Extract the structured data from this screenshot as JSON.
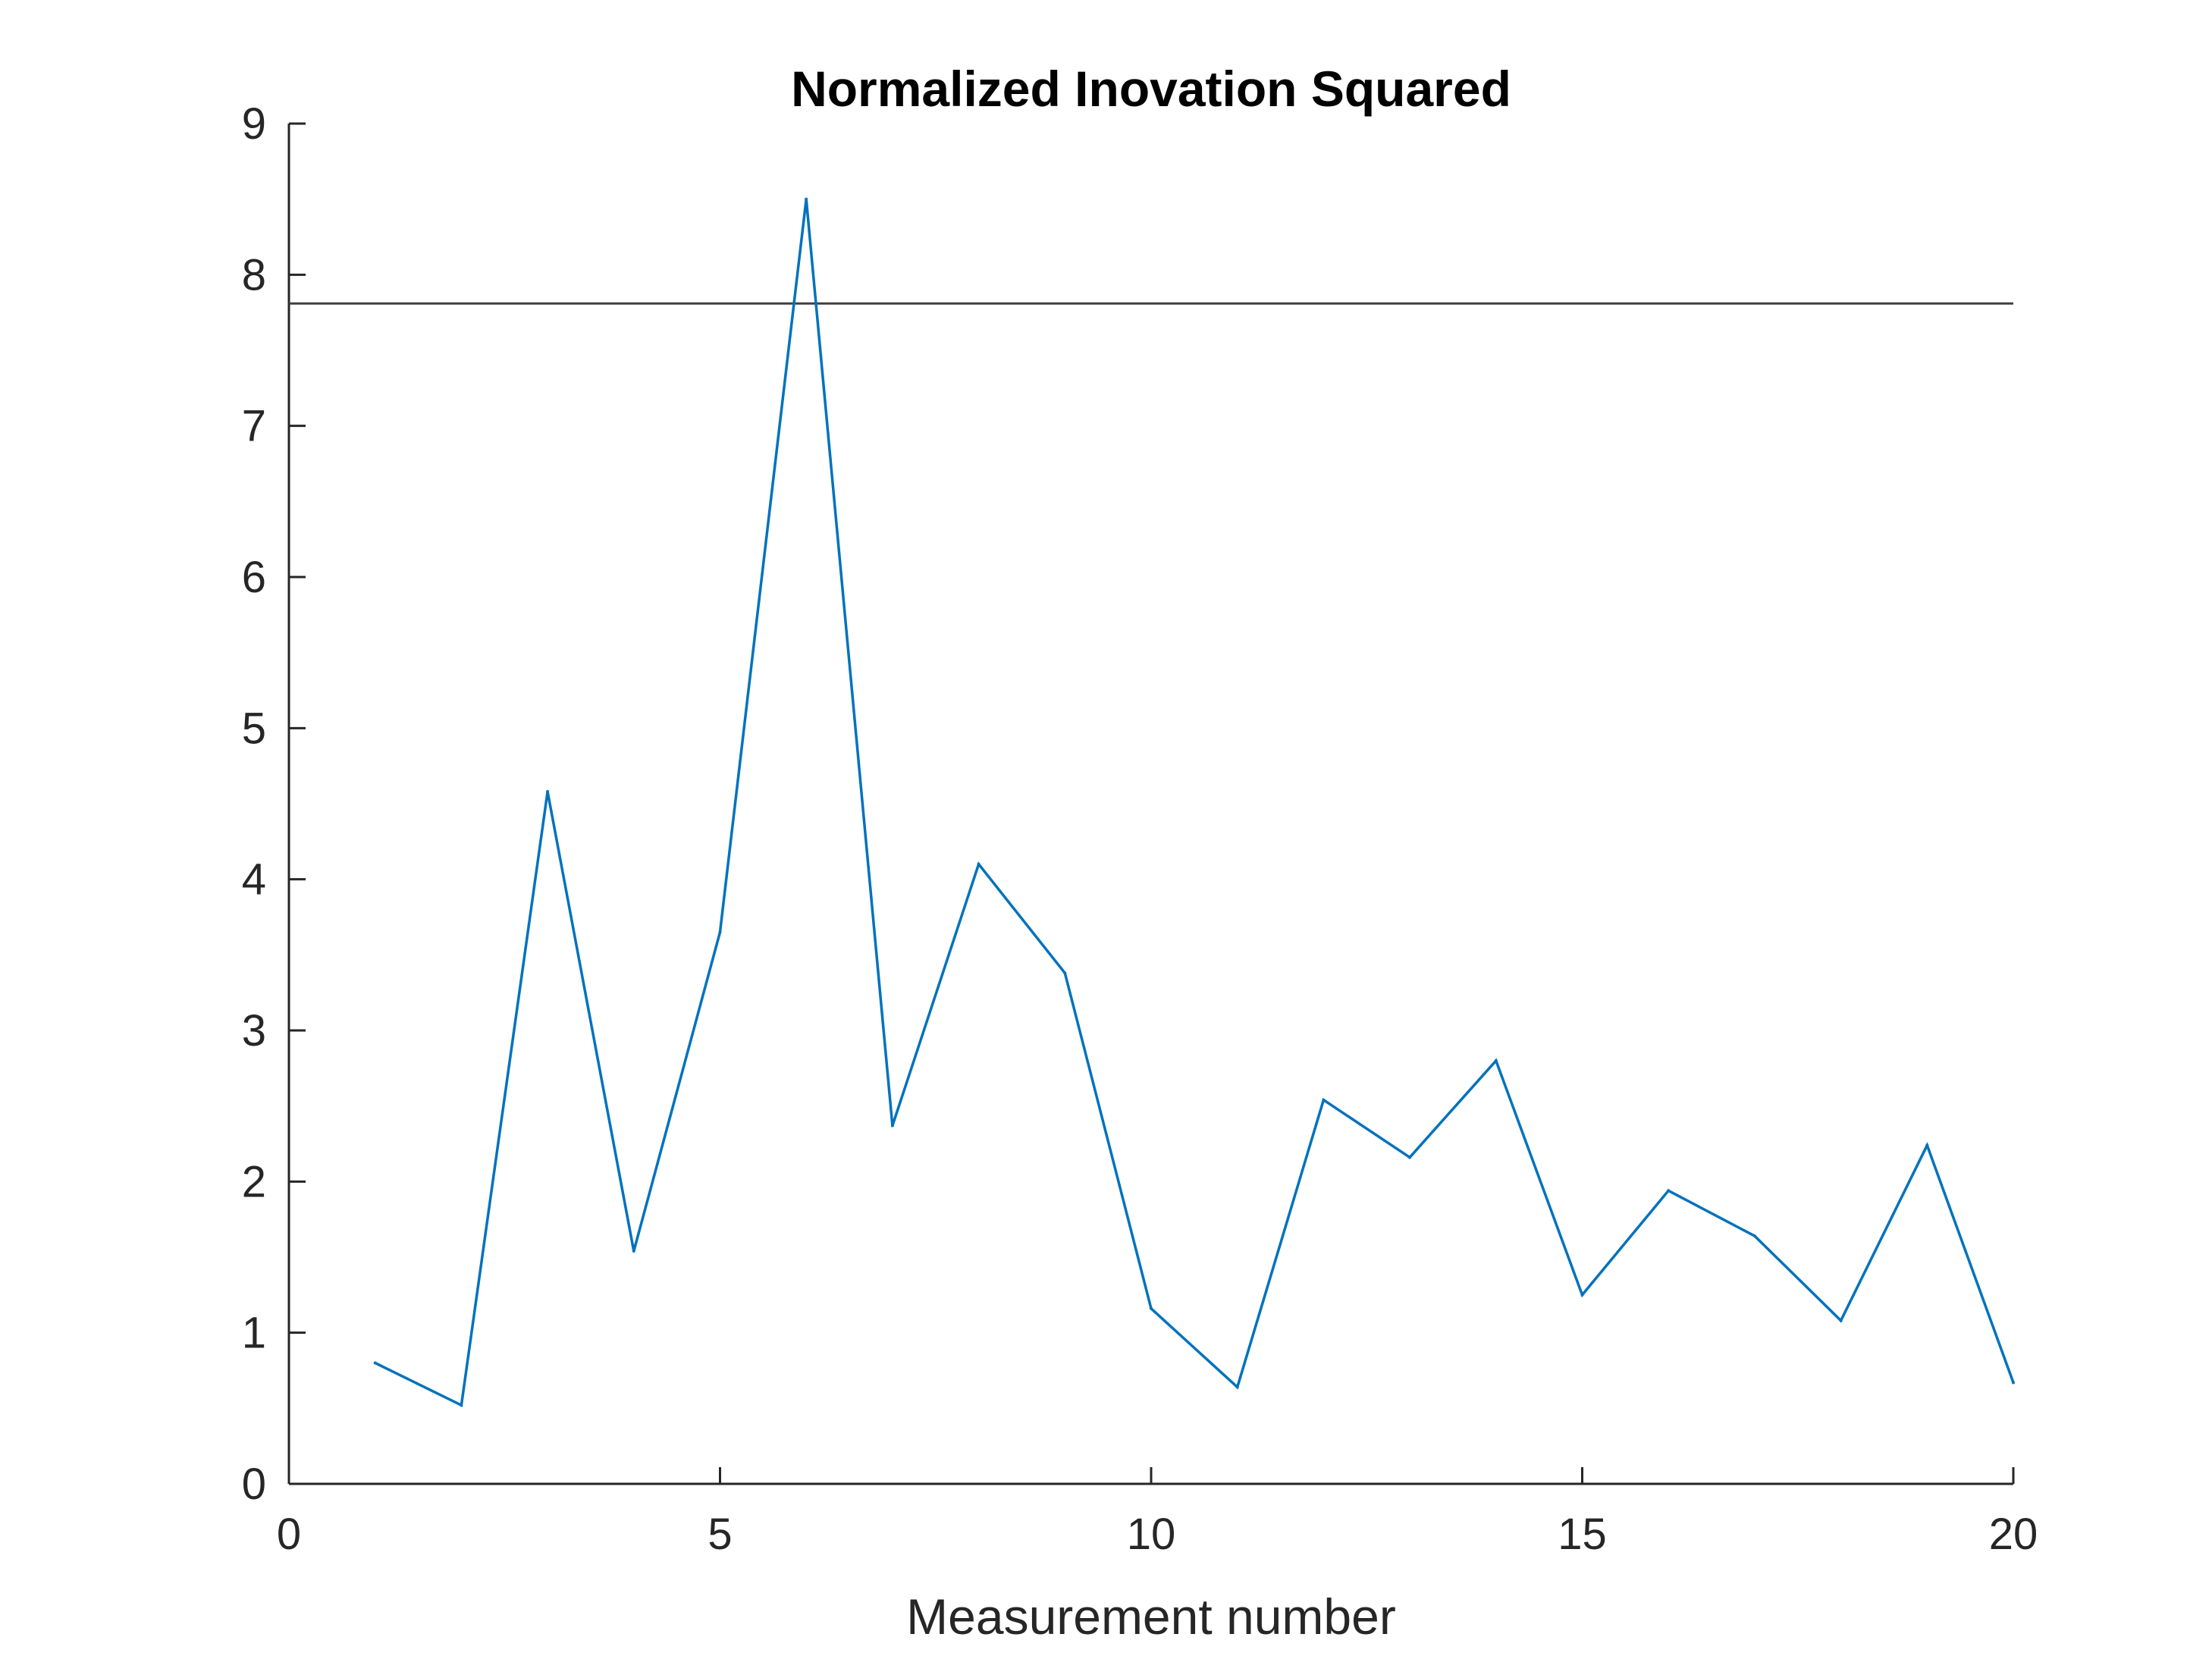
{
  "chart_data": {
    "type": "line",
    "title": "Normalized Inovation Squared",
    "xlabel": "Measurement number",
    "ylabel": "",
    "xlim": [
      0,
      20
    ],
    "ylim": [
      0,
      9
    ],
    "xticks": [
      0,
      5,
      10,
      15,
      20
    ],
    "yticks": [
      0,
      1,
      2,
      3,
      4,
      5,
      6,
      7,
      8,
      9
    ],
    "grid": false,
    "series": [
      {
        "x": [
          1,
          2,
          3,
          4,
          5,
          6,
          7,
          8,
          9,
          10,
          11,
          12,
          13,
          14,
          15,
          16,
          17,
          18,
          19,
          20
        ],
        "y": [
          0.8,
          0.52,
          4.58,
          1.54,
          3.65,
          8.5,
          2.37,
          4.1,
          3.38,
          1.16,
          0.64,
          2.54,
          2.16,
          2.8,
          1.25,
          1.94,
          1.64,
          1.08,
          2.24,
          0.67
        ],
        "color": "#0072BD"
      }
    ],
    "reference_line": {
      "y": 7.81,
      "color": "#404040"
    }
  }
}
